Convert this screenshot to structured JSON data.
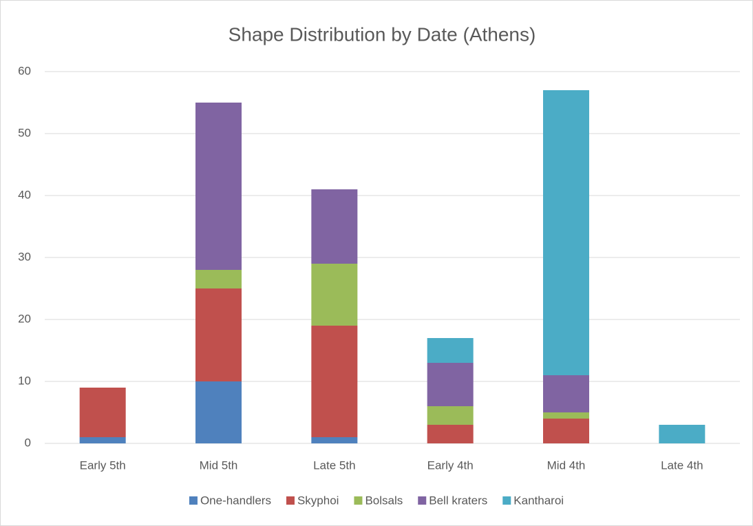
{
  "chart_data": {
    "type": "stacked_bar",
    "title": "Shape Distribution by Date (Athens)",
    "categories": [
      "Early 5th",
      "Mid 5th",
      "Late 5th",
      "Early 4th",
      "Mid 4th",
      "Late 4th"
    ],
    "series": [
      {
        "name": "One-handlers",
        "color": "#4f81bd",
        "values": [
          1,
          10,
          1,
          0,
          0,
          0
        ]
      },
      {
        "name": "Skyphoi",
        "color": "#c0504d",
        "values": [
          8,
          15,
          18,
          3,
          4,
          0
        ]
      },
      {
        "name": "Bolsals",
        "color": "#9bbb59",
        "values": [
          0,
          3,
          10,
          3,
          1,
          0
        ]
      },
      {
        "name": "Bell kraters",
        "color": "#8064a2",
        "values": [
          0,
          27,
          12,
          7,
          6,
          0
        ]
      },
      {
        "name": "Kantharoi",
        "color": "#4bacc6",
        "values": [
          0,
          0,
          0,
          4,
          46,
          3
        ]
      }
    ],
    "ylim": [
      0,
      60
    ],
    "yticks": [
      0,
      10,
      20,
      30,
      40,
      50,
      60
    ],
    "grid": true,
    "legend": "bottom"
  }
}
